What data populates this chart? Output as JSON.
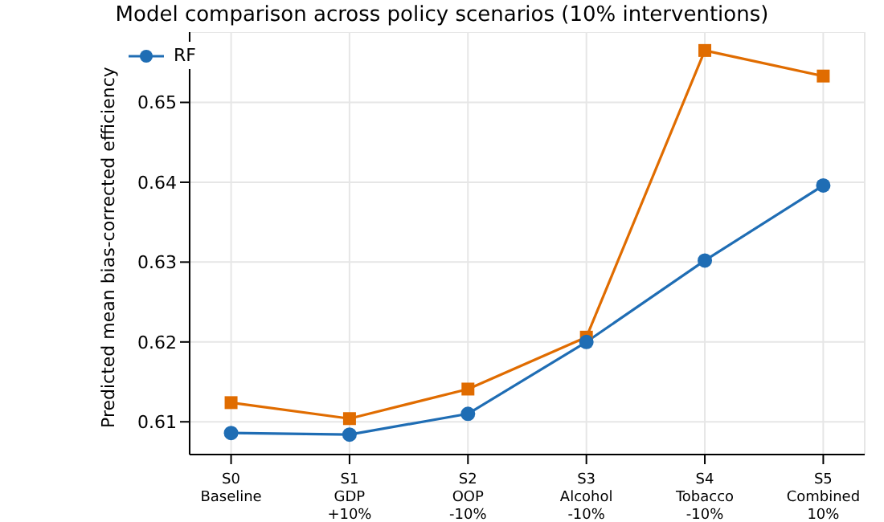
{
  "chart_data": {
    "type": "line",
    "title": "Model comparison across policy scenarios (10% interventions)",
    "ylabel": "Predicted mean bias-corrected efficiency",
    "categories": [
      "S0\nBaseline",
      "S1\nGDP\n+10%",
      "S2\nOOP\n-10%",
      "S3\nAlcohol\n-10%",
      "S4\nTobacco\n-10%",
      "S5\nCombined\n10%"
    ],
    "series": [
      {
        "name": "RF",
        "color": "#1f6db4",
        "marker": "circle",
        "values": [
          0.6086,
          0.6084,
          0.611,
          0.62,
          0.6302,
          0.6396
        ]
      },
      {
        "color": "#e06c00",
        "marker": "square",
        "values": [
          0.6124,
          0.6104,
          0.6141,
          0.6206,
          0.6565,
          0.6533
        ]
      }
    ],
    "ylim": [
      0.6059,
      0.6588
    ],
    "yticks": [
      0.61,
      0.62,
      0.63,
      0.64,
      0.65
    ],
    "grid": true,
    "legend": "top left",
    "line_style": "solid"
  }
}
